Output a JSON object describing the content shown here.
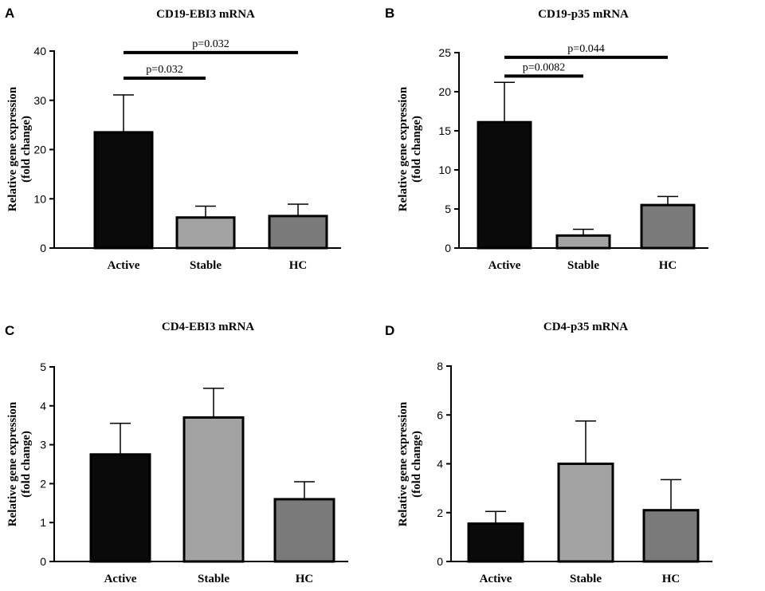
{
  "figure": {
    "panels": [
      "A",
      "B",
      "C",
      "D"
    ]
  },
  "colors": {
    "bar_fills": [
      "#0a0a0a",
      "#a3a3a3",
      "#7a7a7a"
    ],
    "stroke": "#000000",
    "background": "#ffffff"
  },
  "chart_data": [
    {
      "panel": "A",
      "type": "bar",
      "title": "CD19-EBI3 mRNA",
      "xlabel": "",
      "ylabel": [
        "Relative gene expression",
        "(fold change)"
      ],
      "categories": [
        "Active",
        "Stable",
        "HC"
      ],
      "values": [
        23.5,
        6.2,
        6.5
      ],
      "errors": [
        7.6,
        2.3,
        2.4
      ],
      "ylim": [
        0,
        40
      ],
      "yticks": [
        0,
        10,
        20,
        30,
        40
      ],
      "grid": false,
      "significance": [
        {
          "from": 0,
          "to": 1,
          "label": "p=0.032",
          "y": 34.5
        },
        {
          "from": 0,
          "to": 2,
          "label": "p=0.032",
          "y": 39.7
        }
      ]
    },
    {
      "panel": "B",
      "type": "bar",
      "title": "CD19-p35 mRNA",
      "xlabel": "",
      "ylabel": [
        "Relative gene expression",
        "(fold change)"
      ],
      "categories": [
        "Active",
        "Stable",
        "HC"
      ],
      "values": [
        16.1,
        1.6,
        5.5
      ],
      "errors": [
        5.1,
        0.8,
        1.1
      ],
      "ylim": [
        0,
        25
      ],
      "yticks": [
        0,
        5,
        10,
        15,
        20,
        25
      ],
      "grid": false,
      "significance": [
        {
          "from": 0,
          "to": 1,
          "label": "p=0.0082",
          "y": 22.0
        },
        {
          "from": 0,
          "to": 2,
          "label": "p=0.044",
          "y": 24.4
        }
      ]
    },
    {
      "panel": "C",
      "type": "bar",
      "title": "CD4-EBI3 mRNA",
      "xlabel": "",
      "ylabel": [
        "Relative gene expression",
        "(fold change)"
      ],
      "categories": [
        "Active",
        "Stable",
        "HC"
      ],
      "values": [
        2.75,
        3.7,
        1.6
      ],
      "errors": [
        0.8,
        0.75,
        0.45
      ],
      "ylim": [
        0,
        5
      ],
      "yticks": [
        0,
        1,
        2,
        3,
        4,
        5
      ],
      "grid": false,
      "significance": []
    },
    {
      "panel": "D",
      "type": "bar",
      "title": "CD4-p35 mRNA",
      "xlabel": "",
      "ylabel": [
        "Relative gene expression",
        "(fold change)"
      ],
      "categories": [
        "Active",
        "Stable",
        "HC"
      ],
      "values": [
        1.55,
        4.0,
        2.1
      ],
      "errors": [
        0.5,
        1.75,
        1.25
      ],
      "ylim": [
        0,
        8
      ],
      "yticks": [
        0,
        2,
        4,
        6,
        8
      ],
      "grid": false,
      "significance": []
    }
  ]
}
